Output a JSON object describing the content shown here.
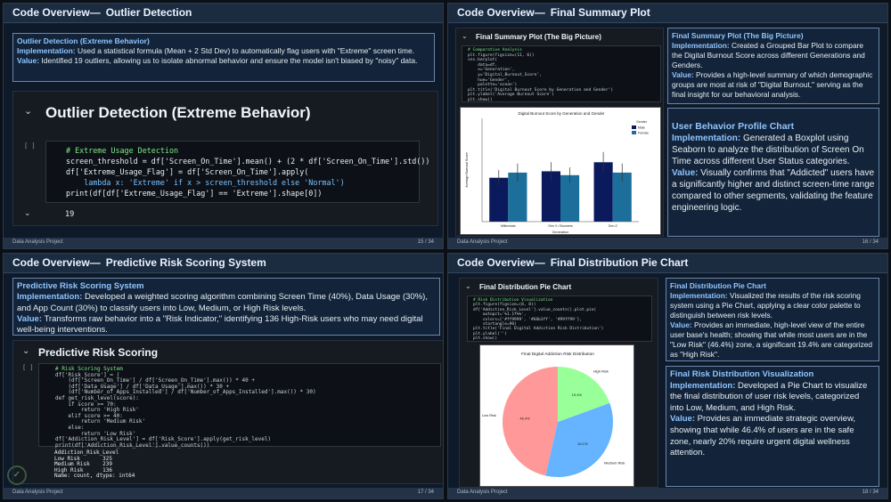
{
  "slide1": {
    "title_a": "Code Overview—",
    "title_b": "Outlier Detection",
    "box_title": "Outlier Detection (Extreme Behavior)",
    "impl_label": "Implementation:",
    "impl_text": "Used a statistical formula (Mean + 2 Std Dev) to automatically flag users with \"Extreme\" screen time.",
    "value_label": "Value:",
    "value_text": "Identified 19 outliers, allowing us to isolate abnormal behavior and ensure the model isn't biased by \"noisy\" data.",
    "nb_heading": "Outlier Detection (Extreme Behavior)",
    "cell_prompt": "[ ]",
    "code": {
      "l1": "# Extreme Usage Detection",
      "l2": "screen_threshold = df['Screen_On_Time'].mean() + (2 * df['Screen_On_Time'].std())",
      "l3": "df['Extreme_Usage_Flag'] = df['Screen_On_Time'].apply(",
      "l4": "    lambda x: 'Extreme' if x > screen_threshold else 'Normal')",
      "l5": "print(df[df['Extreme_Usage_Flag'] == 'Extreme'].shape[0])"
    },
    "output": "19",
    "footer": "Data Analysis Project",
    "page": "15 / 34"
  },
  "slide2": {
    "title_a": "Code Overview—",
    "title_b": "Final Summary Plot",
    "nb_heading": "Final Summary Plot (The Big Picture)",
    "code_lines": [
      "# Comparative Analysis",
      "plt.figure(figsize=(11, 6))",
      "sns.barplot(",
      "    data=df,",
      "    x='Generation',",
      "    y='Digital_Burnout_Score',",
      "    hue='Gender',",
      "    palette='ocean')",
      "plt.title('Digital Burnout Score by Generation and Gender')",
      "plt.ylabel('Average Burnout Score')",
      "plt.show()"
    ],
    "box1_title": "Final Summary Plot (The Big Picture)",
    "box1_impl_label": "Implementation:",
    "box1_impl": "Created a Grouped Bar Plot to compare the Digital Burnout Score across different Generations and Genders.",
    "box1_value_label": "Value:",
    "box1_value": "Provides a high-level summary of which demographic groups are most at risk of \"Digital Burnout,\" serving as the final insight for our behavioral analysis.",
    "box2_title": "User Behavior Profile Chart",
    "box2_impl_label": "Implementation:",
    "box2_impl": "Generated a Boxplot using Seaborn to analyze the distribution of Screen On Time across different User Status categories.",
    "box2_value_label": "Value:",
    "box2_value": "Visually confirms that \"Addicted\" users have a significantly higher and distinct screen-time range compared to other segments, validating the feature engineering logic.",
    "footer": "Data Analysis Project",
    "page": "16 / 34"
  },
  "slide3": {
    "title_a": "Code Overview—",
    "title_b": "Predictive Risk Scoring System",
    "box_title": "Predictive Risk Scoring System",
    "impl_label": "Implementation:",
    "impl_text": "Developed a weighted scoring algorithm combining Screen Time (40%), Data Usage (30%), and App Count (30%) to classify users into Low, Medium, or High Risk levels.",
    "value_label": "Value:",
    "value_text": "Transforms raw behavior into a \"Risk Indicator,\" identifying 136 High-Risk users who may need digital well-being interventions.",
    "nb_heading": "Predictive Risk Scoring",
    "cell_prompt": "[ ]",
    "code_lines": [
      "# Risk Scoring System",
      "df['Risk_Score'] = (",
      "    (df['Screen_On_Time'] / df['Screen_On_Time'].max()) * 40 +",
      "    (df['Data_Usage'] / df['Data_Usage'].max()) * 30 +",
      "    (df['Number_of_Apps_Installed'] / df['Number_of_Apps_Installed'].max()) * 30)",
      "def get_risk_level(score):",
      "    if score >= 70:",
      "        return 'High Risk'",
      "    elif score >= 40:",
      "        return 'Medium Risk'",
      "    else:",
      "        return 'Low Risk'",
      "df['Addiction_Risk_Level'] = df['Risk_Score'].apply(get_risk_level)",
      "print(df['Addiction_Risk_Level'].value_counts())"
    ],
    "output_lines": [
      "Addiction_Risk_Level",
      "Low Risk       325",
      "Medium Risk    239",
      "High Risk      136",
      "Name: count, dtype: int64"
    ],
    "footer": "Data Analysis Project",
    "page": "17 / 34"
  },
  "slide4": {
    "title_a": "Code Overview—",
    "title_b": "Final Distribution Pie Chart",
    "nb_heading": "Final Distribution Pie Chart",
    "code_lines": [
      "# Risk Distribution Visualization",
      "plt.figure(figsize=(8, 8))",
      "df['Addiction_Risk_Level'].value_counts().plot.pie(",
      "    autopct='%1.1f%%',",
      "    colors=['#ff9999', '#66b3ff', '#99ff99'],",
      "    startangle=90)",
      "plt.title('Final Digital Addiction Risk Distribution')",
      "plt.ylabel('')",
      "plt.show()"
    ],
    "box1_title": "Final Distribution Pie Chart",
    "box1_impl_label": "Implementation:",
    "box1_impl": "Visualized the results of the risk scoring system using a Pie Chart, applying a clear color palette to distinguish between risk levels.",
    "box1_value_label": "Value:",
    "box1_value": "Provides an immediate, high-level view of the entire user base's health; showing that while most users are in the \"Low Risk\" (46.4%) zone, a significant 19.4% are categorized as \"High Risk\".",
    "box2_title": "Final Risk Distribution Visualization",
    "box2_impl_label": "Implementation:",
    "box2_impl": "Developed a Pie Chart to visualize the final distribution of user risk levels, categorized into Low, Medium, and High Risk.",
    "box2_value_label": "Value:",
    "box2_value": "Provides an immediate strategic overview, showing that while 46.4% of users are in the safe zone, nearly 20% require urgent digital wellness attention.",
    "footer": "Data Analysis Project",
    "page": "18 / 34"
  },
  "chart_data": [
    {
      "type": "bar",
      "title": "Digital Burnout Score by Generation and Gender",
      "xlabel": "Generation",
      "ylabel": "Average Burnout Score",
      "categories": [
        "Millennials",
        "Gen X / Boomers",
        "Gen Z"
      ],
      "legend_title": "Gender",
      "legend_position": "top-right",
      "ylim": [
        0,
        8
      ],
      "series": [
        {
          "name": "Male",
          "values": [
            3.4,
            3.9,
            4.6
          ],
          "err": [
            0.6,
            0.7,
            0.8
          ],
          "color": "#0b1a5c"
        },
        {
          "name": "Female",
          "values": [
            3.8,
            3.6,
            3.8
          ],
          "err": [
            0.7,
            0.6,
            0.7
          ],
          "color": "#1b6f9a"
        }
      ]
    },
    {
      "type": "pie",
      "title": "Final Digital Addiction Risk Distribution",
      "labels": [
        "Low Risk",
        "Medium Risk",
        "High Risk"
      ],
      "values": [
        46.4,
        34.1,
        19.4
      ],
      "pct_labels": [
        "46.4%",
        "34.1%",
        "19.4%"
      ],
      "colors": [
        "#ff9999",
        "#66b3ff",
        "#99ff99"
      ]
    }
  ]
}
